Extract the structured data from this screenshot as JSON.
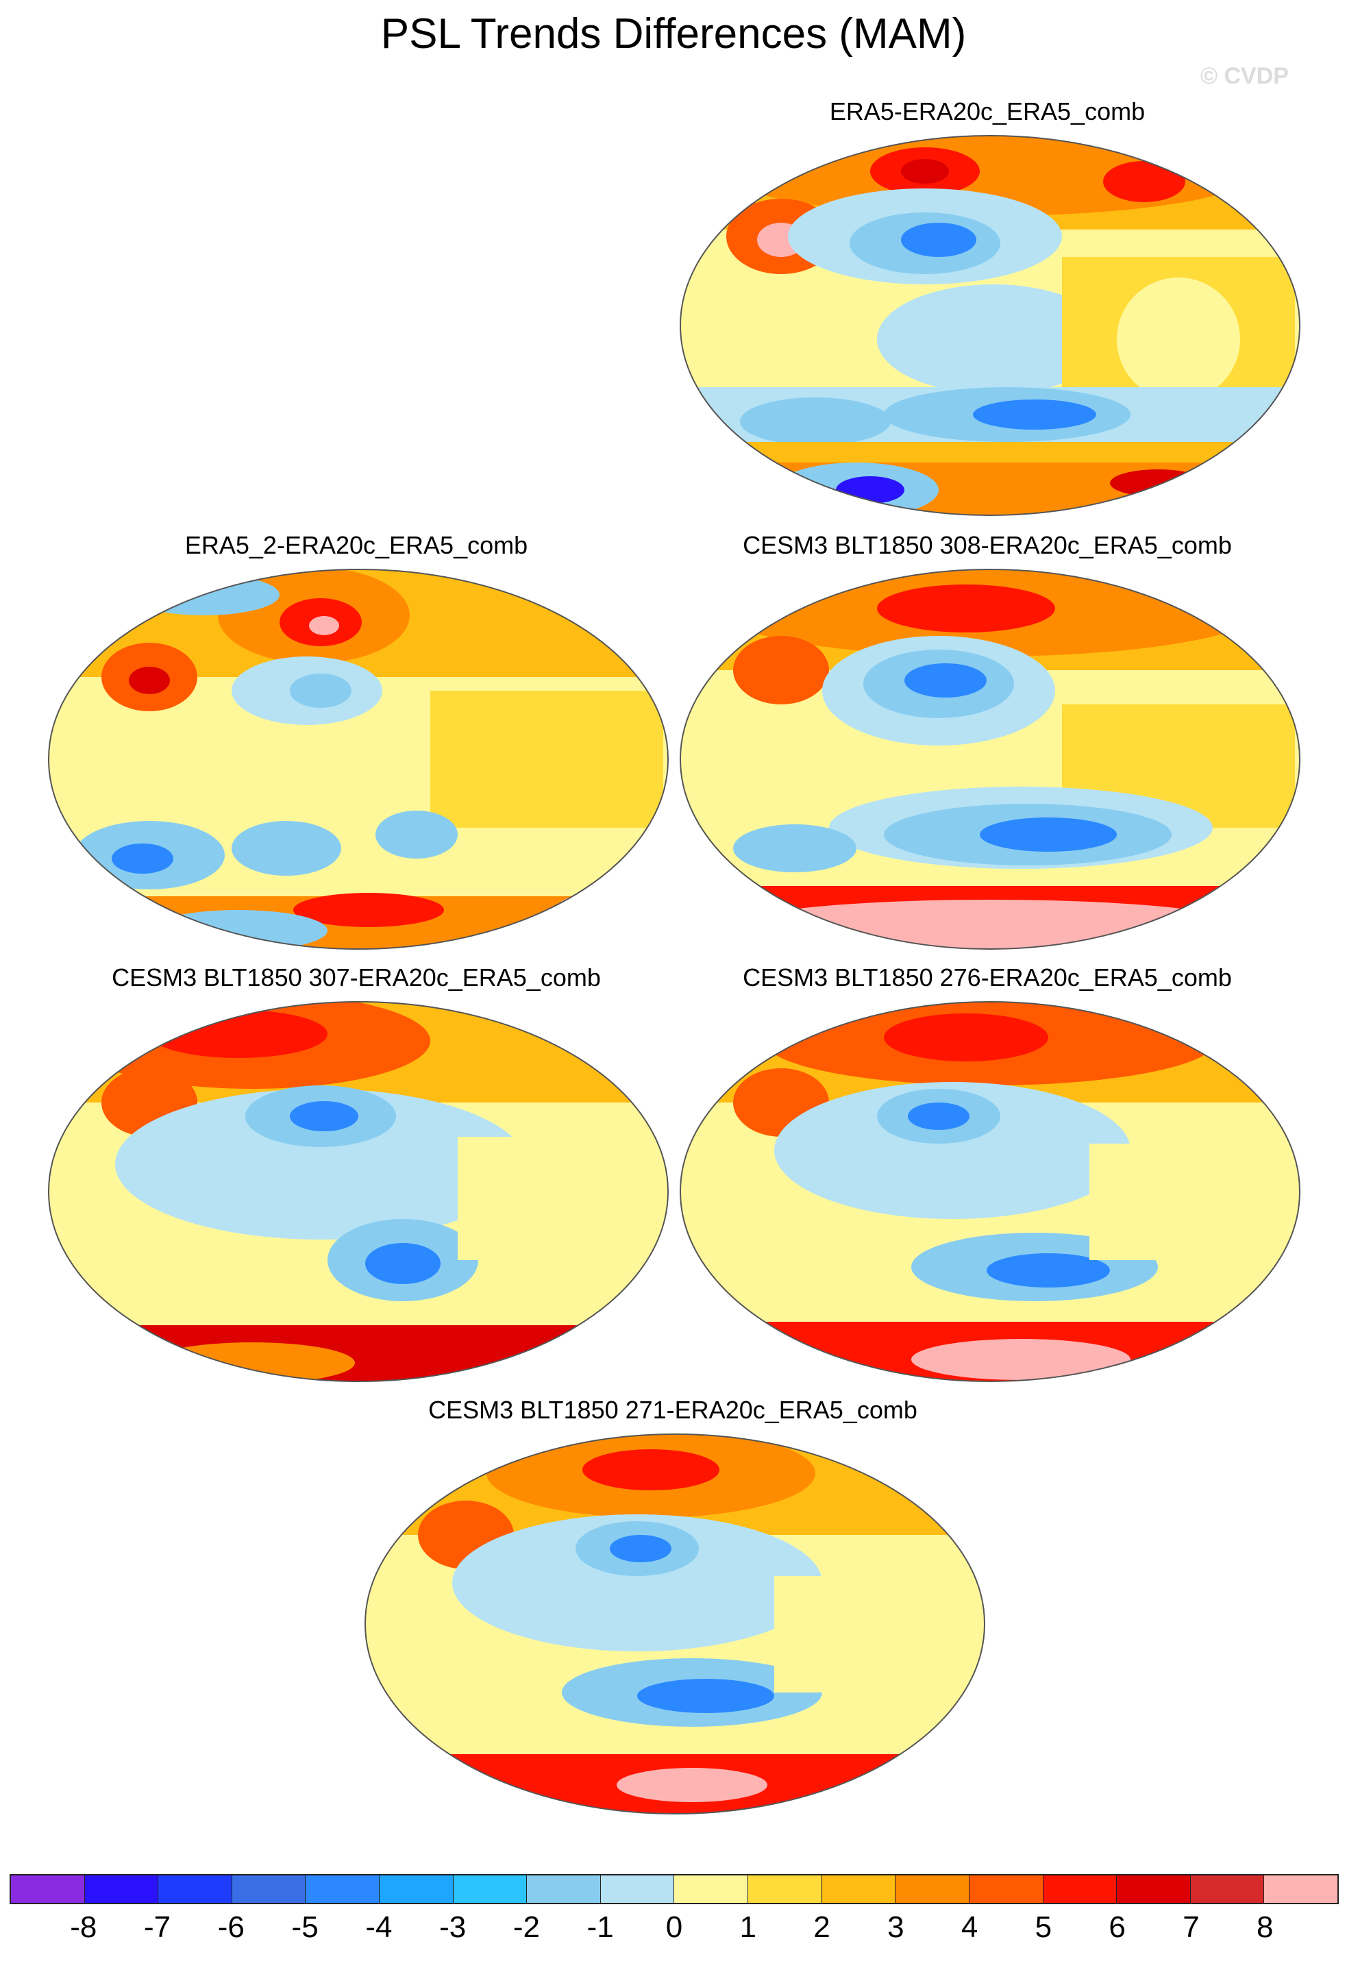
{
  "title": "PSL Trends Differences (MAM)",
  "watermark": "© CVDP",
  "panels": [
    {
      "title": "ERA5-ERA20c_ERA5_comb"
    },
    {
      "title": "ERA5_2-ERA20c_ERA5_comb"
    },
    {
      "title": "CESM3 BLT1850 308-ERA20c_ERA5_comb"
    },
    {
      "title": "CESM3 BLT1850 307-ERA20c_ERA5_comb"
    },
    {
      "title": "CESM3 BLT1850 276-ERA20c_ERA5_comb"
    },
    {
      "title": "CESM3 BLT1850 271-ERA20c_ERA5_comb"
    }
  ],
  "colorbar": {
    "colors": [
      "#8a2be2",
      "#2a12ff",
      "#1e3cff",
      "#3a6ee6",
      "#2b88ff",
      "#1ea6ff",
      "#2bc4ff",
      "#88cdf0",
      "#b6e2f4",
      "#fff89a",
      "#ffdc3a",
      "#ffbc12",
      "#ff8c00",
      "#ff5a00",
      "#ff1400",
      "#dc0000",
      "#d62a2a",
      "#ffb4b4"
    ],
    "labels": [
      "-8",
      "-7",
      "-6",
      "-5",
      "-4",
      "-3",
      "-2",
      "-1",
      "0",
      "1",
      "2",
      "3",
      "4",
      "5",
      "6",
      "7",
      "8"
    ]
  }
}
